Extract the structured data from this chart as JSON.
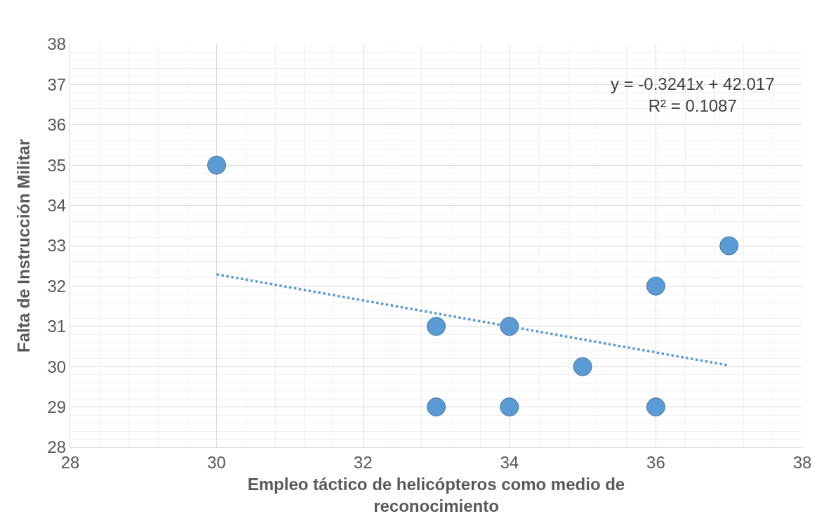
{
  "chart_data": {
    "type": "scatter",
    "xlabel": "Empleo táctico de helicópteros como medio de reconocimiento",
    "ylabel": "Falta de Instrucción Militar",
    "x": [
      30,
      33,
      33,
      34,
      34,
      35,
      36,
      36,
      37
    ],
    "series": [
      {
        "color": "#5b9bd5",
        "marker": "circle",
        "values": [
          35,
          31,
          29,
          31,
          29,
          30,
          32,
          29,
          33
        ]
      },
      {
        "type": "line",
        "color": "#5b9bd5",
        "line_style": "dotted",
        "marker": "none",
        "x": [
          30,
          37
        ],
        "values": [
          32.29,
          30.03
        ]
      }
    ],
    "annotations": [
      "y = -0.3241x + 42.017\nR² = 0.1087"
    ],
    "xlim": [
      28,
      38
    ],
    "xticks": [
      28,
      30,
      32,
      34,
      36,
      38
    ],
    "ylim": [
      28,
      38
    ],
    "yticks": [
      28,
      29,
      30,
      31,
      32,
      33,
      34,
      35,
      36,
      37,
      38
    ],
    "grid": true
  }
}
